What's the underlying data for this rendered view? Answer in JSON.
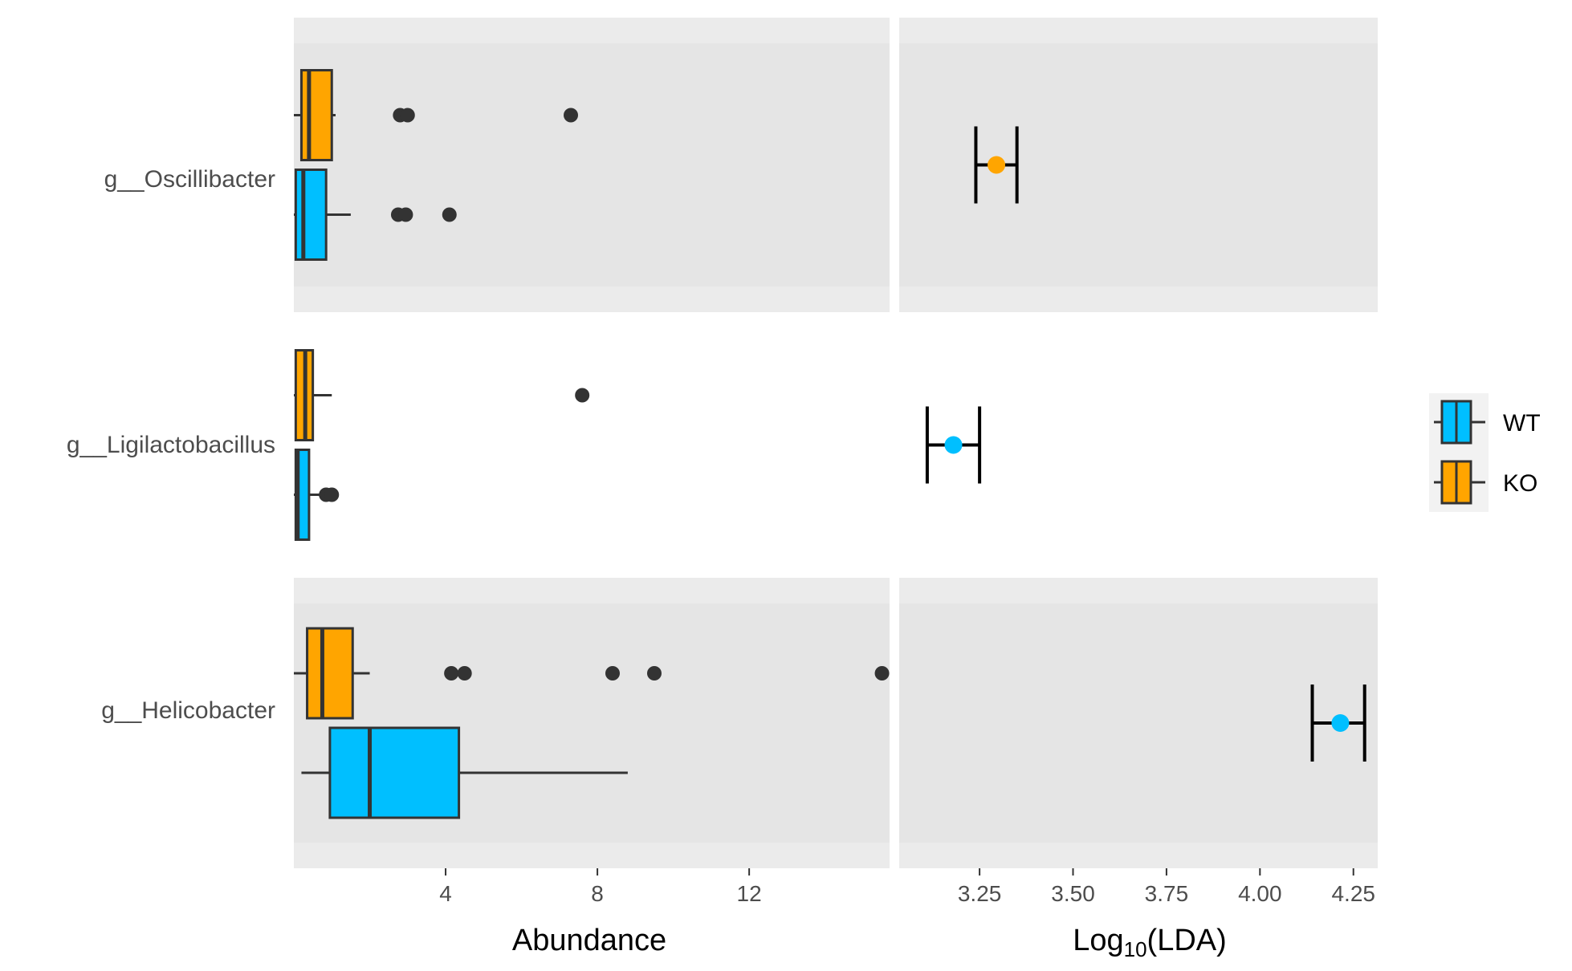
{
  "chart_data": {
    "type": "boxplot+errorbar",
    "groups": [
      {
        "name": "WT",
        "color": "#00BFFF"
      },
      {
        "name": "KO",
        "color": "#FFA500"
      }
    ],
    "taxa": [
      {
        "label": "g__Oscillibacter",
        "shaded": true,
        "boxes": {
          "KO": {
            "whisker_low": 0.0,
            "q1": 0.2,
            "median": 0.4,
            "q3": 1.0,
            "whisker_high": 1.1,
            "outliers": [
              2.8,
              3.0,
              7.3
            ]
          },
          "WT": {
            "whisker_low": 0.0,
            "q1": 0.05,
            "median": 0.25,
            "q3": 0.85,
            "whisker_high": 1.5,
            "outliers": [
              2.75,
              2.95,
              4.1
            ]
          }
        },
        "lda": {
          "group": "KO",
          "value": 3.295,
          "low": 3.24,
          "high": 3.35
        }
      },
      {
        "label": "g__Ligilactobacillus",
        "shaded": false,
        "boxes": {
          "KO": {
            "whisker_low": 0.0,
            "q1": 0.05,
            "median": 0.3,
            "q3": 0.5,
            "whisker_high": 1.0,
            "outliers": [
              7.6
            ]
          },
          "WT": {
            "whisker_low": 0.0,
            "q1": 0.05,
            "median": 0.1,
            "q3": 0.4,
            "whisker_high": 0.7,
            "outliers": [
              0.85,
              1.0
            ]
          }
        },
        "lda": {
          "group": "WT",
          "value": 3.18,
          "low": 3.11,
          "high": 3.25
        }
      },
      {
        "label": "g__Helicobacter",
        "shaded": true,
        "boxes": {
          "KO": {
            "whisker_low": 0.0,
            "q1": 0.35,
            "median": 0.75,
            "q3": 1.55,
            "whisker_high": 2.0,
            "outliers": [
              4.15,
              4.5,
              8.4,
              9.5,
              15.5
            ]
          },
          "WT": {
            "whisker_low": 0.2,
            "q1": 0.95,
            "median": 2.0,
            "q3": 4.35,
            "whisker_high": 8.8,
            "outliers": []
          }
        },
        "lda": {
          "group": "WT",
          "value": 4.215,
          "low": 4.14,
          "high": 4.28
        }
      }
    ],
    "abundance_axis": {
      "label": "Abundance",
      "range": [
        0,
        15.7
      ],
      "ticks": [
        "4",
        "8",
        "12"
      ],
      "tick_values": [
        4,
        8,
        12
      ]
    },
    "lda_axis": {
      "label_main": "Log",
      "label_sub": "10",
      "label_tail": "(LDA)",
      "range": [
        3.035,
        4.315
      ],
      "ticks": [
        "3.25",
        "3.50",
        "3.75",
        "4.00",
        "4.25"
      ],
      "tick_values": [
        3.25,
        3.5,
        3.75,
        4.0,
        4.25
      ]
    },
    "legend": {
      "position": "right",
      "items": [
        "WT",
        "KO"
      ]
    },
    "panel_colors": {
      "strip": "#EBEBEB",
      "panel": "#E5E5E5"
    }
  }
}
